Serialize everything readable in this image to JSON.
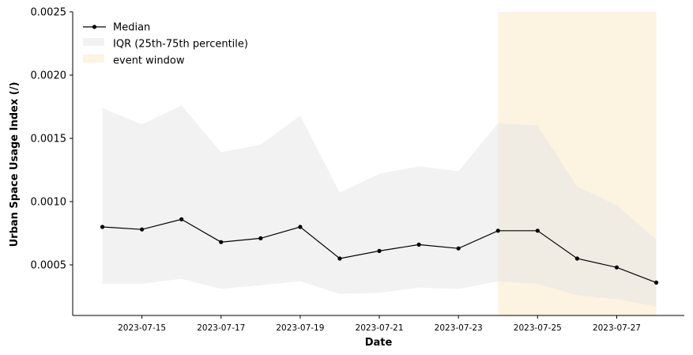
{
  "chart_data": {
    "type": "line",
    "title": "",
    "xlabel": "Date",
    "ylabel": "Urban Space Usage Index (/)",
    "x": [
      "2023-07-14",
      "2023-07-15",
      "2023-07-16",
      "2023-07-17",
      "2023-07-18",
      "2023-07-19",
      "2023-07-20",
      "2023-07-21",
      "2023-07-22",
      "2023-07-23",
      "2023-07-24",
      "2023-07-25",
      "2023-07-26",
      "2023-07-27",
      "2023-07-28"
    ],
    "series": [
      {
        "name": "Median",
        "type": "line",
        "values": [
          0.0008,
          0.00078,
          0.00086,
          0.00068,
          0.00071,
          0.0008,
          0.00055,
          0.00061,
          0.00066,
          0.00063,
          0.00077,
          0.00077,
          0.00055,
          0.00048,
          0.00036
        ],
        "color": "#000000"
      },
      {
        "name": "IQR (25th-75th percentile)",
        "type": "band",
        "lower": [
          0.00035,
          0.00035,
          0.00039,
          0.00031,
          0.00034,
          0.00037,
          0.00027,
          0.00028,
          0.00032,
          0.00031,
          0.00037,
          0.00035,
          0.00026,
          0.00023,
          0.00017
        ],
        "upper": [
          0.00174,
          0.00161,
          0.00176,
          0.00139,
          0.00145,
          0.00168,
          0.00107,
          0.00122,
          0.00128,
          0.00124,
          0.00162,
          0.0016,
          0.00112,
          0.00097,
          0.0007
        ],
        "color": "#f2f2f2"
      },
      {
        "name": "event window",
        "type": "span",
        "start": "2023-07-24",
        "end": "2023-07-28",
        "color": "#fdf3e1"
      }
    ],
    "xticks": [
      "2023-07-15",
      "2023-07-17",
      "2023-07-19",
      "2023-07-21",
      "2023-07-23",
      "2023-07-25",
      "2023-07-27"
    ],
    "yticks": [
      "0.0005",
      "0.0010",
      "0.0015",
      "0.0020",
      "0.0025"
    ],
    "xlim": [
      "2023-07-13T06:00",
      "2023-07-28T17:00"
    ],
    "ylim": [
      0.0001,
      0.0025
    ],
    "grid": false,
    "legend_position": "top-left"
  }
}
